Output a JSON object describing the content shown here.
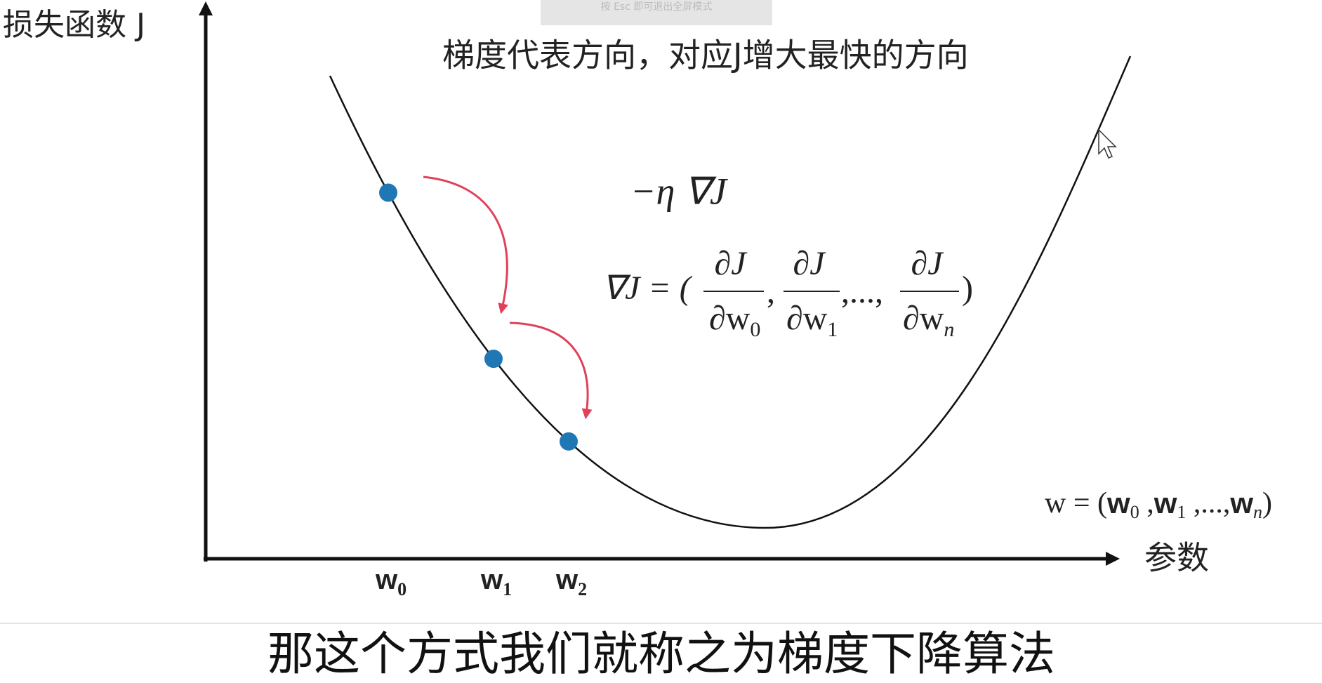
{
  "toast": "按 Esc 即可退出全屏模式",
  "axis": {
    "y_label": "损失函数 J",
    "x_label": "参数"
  },
  "heading": "梯度代表方向，对应J增大最快的方向",
  "step_formula": "−η ∇J",
  "gradient_formula": {
    "lhs": "∇J = (",
    "terms": [
      {
        "num": "∂J",
        "den": "∂w",
        "sub": "0"
      },
      {
        "num": "∂J",
        "den": "∂w",
        "sub": "1"
      },
      {
        "num": "∂J",
        "den": "∂w",
        "sub": "n"
      }
    ],
    "separators": [
      ",",
      ",...,"
    ],
    "close": ")"
  },
  "parameter_vector": {
    "open": "w = (",
    "items": [
      {
        "base": "w",
        "sub": "0"
      },
      {
        "base": "w",
        "sub": "1"
      },
      {
        "base": "w",
        "sub": "n"
      }
    ],
    "separators": [
      " ,",
      " ,...,"
    ],
    "close": ")"
  },
  "points": [
    {
      "base": "w",
      "sub": "0"
    },
    {
      "base": "w",
      "sub": "1"
    },
    {
      "base": "w",
      "sub": "2"
    }
  ],
  "subtitle": "那这个方式我们就称之为梯度下降算法"
}
